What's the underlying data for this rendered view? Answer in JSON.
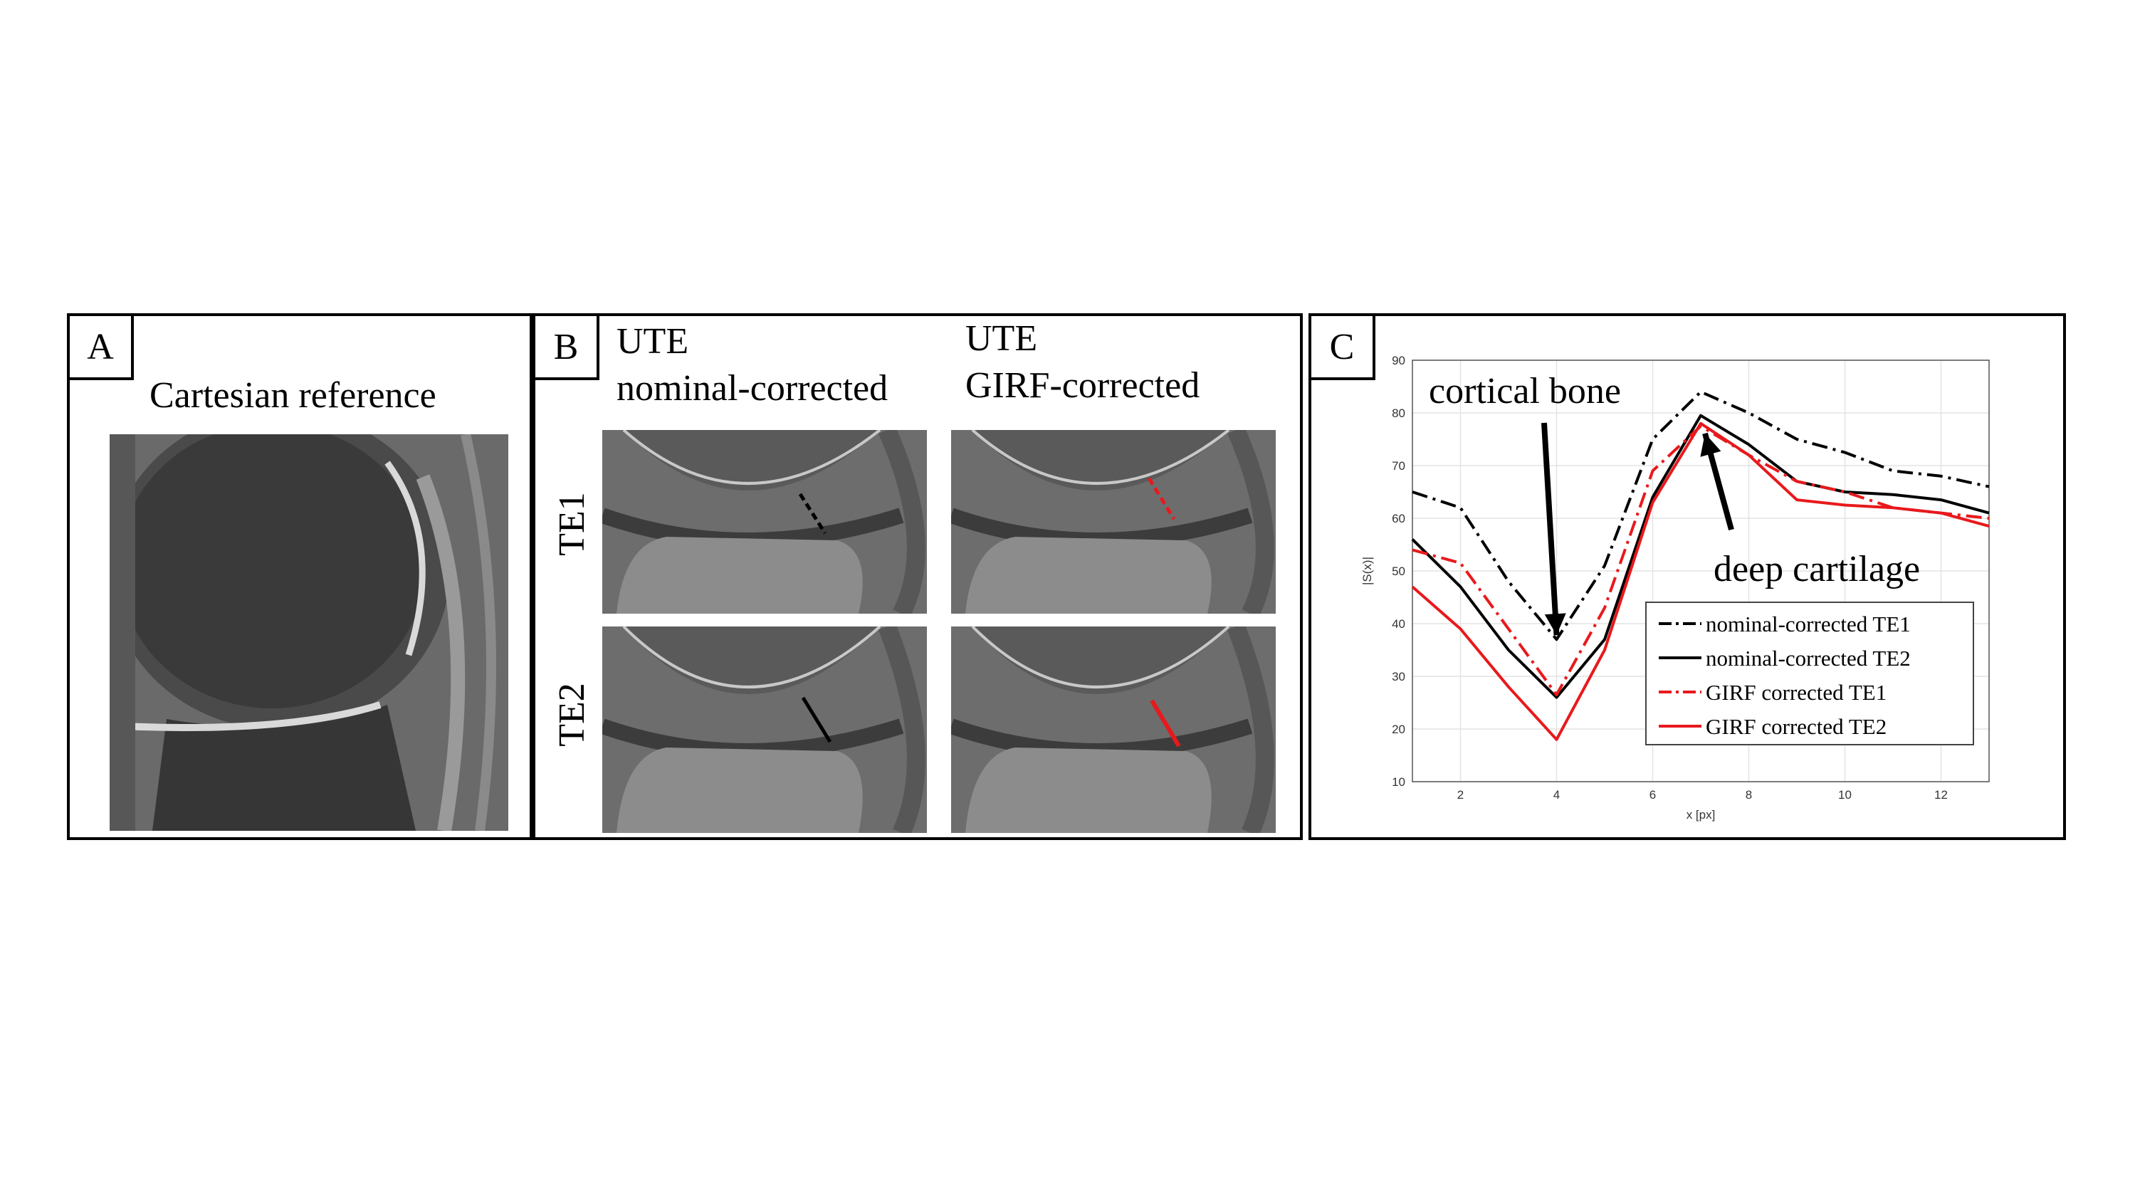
{
  "panels": {
    "a": {
      "label": "A",
      "title": "Cartesian reference"
    },
    "b": {
      "label": "B",
      "col1_line1": "UTE",
      "col1_line2": "nominal-corrected",
      "col2_line1": "UTE",
      "col2_line2": "GIRF-corrected",
      "row1": "TE1",
      "row2": "TE2"
    },
    "c": {
      "label": "C"
    }
  },
  "colors": {
    "nominal": "#000000",
    "girf": "#e8191c",
    "grid": "#e3e3e3"
  },
  "chart_data": {
    "type": "line",
    "xlabel": "x [px]",
    "ylabel": "|S(x)|",
    "xlim": [
      1,
      13
    ],
    "ylim": [
      10,
      90
    ],
    "xticks": [
      2,
      4,
      6,
      8,
      10,
      12
    ],
    "yticks": [
      10,
      20,
      30,
      40,
      50,
      60,
      70,
      80,
      90
    ],
    "grid": true,
    "legend_position": "bottom-right",
    "x": [
      1,
      2,
      3,
      4,
      5,
      6,
      7,
      8,
      9,
      10,
      11,
      12,
      13
    ],
    "series": [
      {
        "name": "nominal-corrected TE1",
        "color": "#000000",
        "dash": "dashdot",
        "values": [
          65,
          62,
          48,
          37,
          51,
          75,
          84,
          80,
          75,
          72.5,
          69,
          68,
          66
        ]
      },
      {
        "name": "nominal-corrected TE2",
        "color": "#000000",
        "dash": "solid",
        "values": [
          56,
          47,
          35,
          26,
          37,
          64,
          79.5,
          74,
          67,
          65,
          64.5,
          63.5,
          61
        ]
      },
      {
        "name": "GIRF corrected TE1",
        "color": "#e8191c",
        "dash": "dashdot",
        "values": [
          54,
          51.5,
          39,
          26.5,
          43,
          69,
          77.5,
          72,
          67,
          65,
          62,
          61,
          60
        ]
      },
      {
        "name": "GIRF corrected TE2",
        "color": "#e8191c",
        "dash": "solid",
        "values": [
          47,
          39,
          28,
          18,
          35,
          63,
          78,
          72,
          63.5,
          62.5,
          62,
          61,
          58.5
        ]
      }
    ],
    "annotations": [
      {
        "text": "cortical bone",
        "x": 4,
        "y": 37
      },
      {
        "text": "deep cartilage",
        "x": 7,
        "y": 78
      }
    ]
  }
}
